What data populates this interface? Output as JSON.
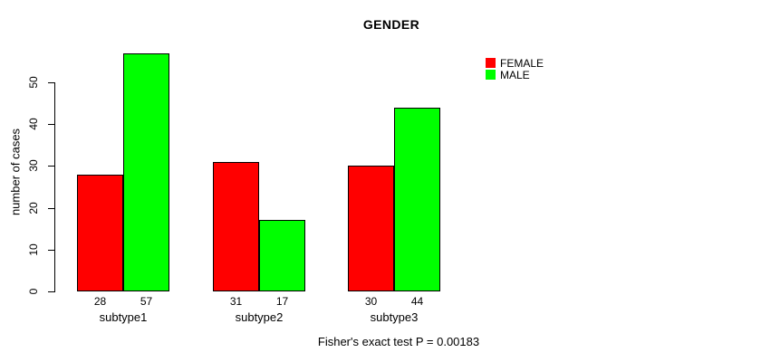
{
  "chart_data": {
    "type": "bar",
    "title": "GENDER",
    "xlabel": "",
    "ylabel": "number of cases",
    "categories": [
      "subtype1",
      "subtype2",
      "subtype3"
    ],
    "series": [
      {
        "name": "FEMALE",
        "color": "#ff0000",
        "values": [
          28,
          31,
          30
        ]
      },
      {
        "name": "MALE",
        "color": "#00ff00",
        "values": [
          57,
          17,
          44
        ]
      }
    ],
    "yticks": [
      0,
      10,
      20,
      30,
      40,
      50
    ],
    "ylim": [
      0,
      58
    ],
    "grid": false,
    "legend_position": "topright",
    "bar_border_color": "#000000",
    "background": "#ffffff",
    "annotation": "Fisher's exact test P = 0.00183"
  }
}
